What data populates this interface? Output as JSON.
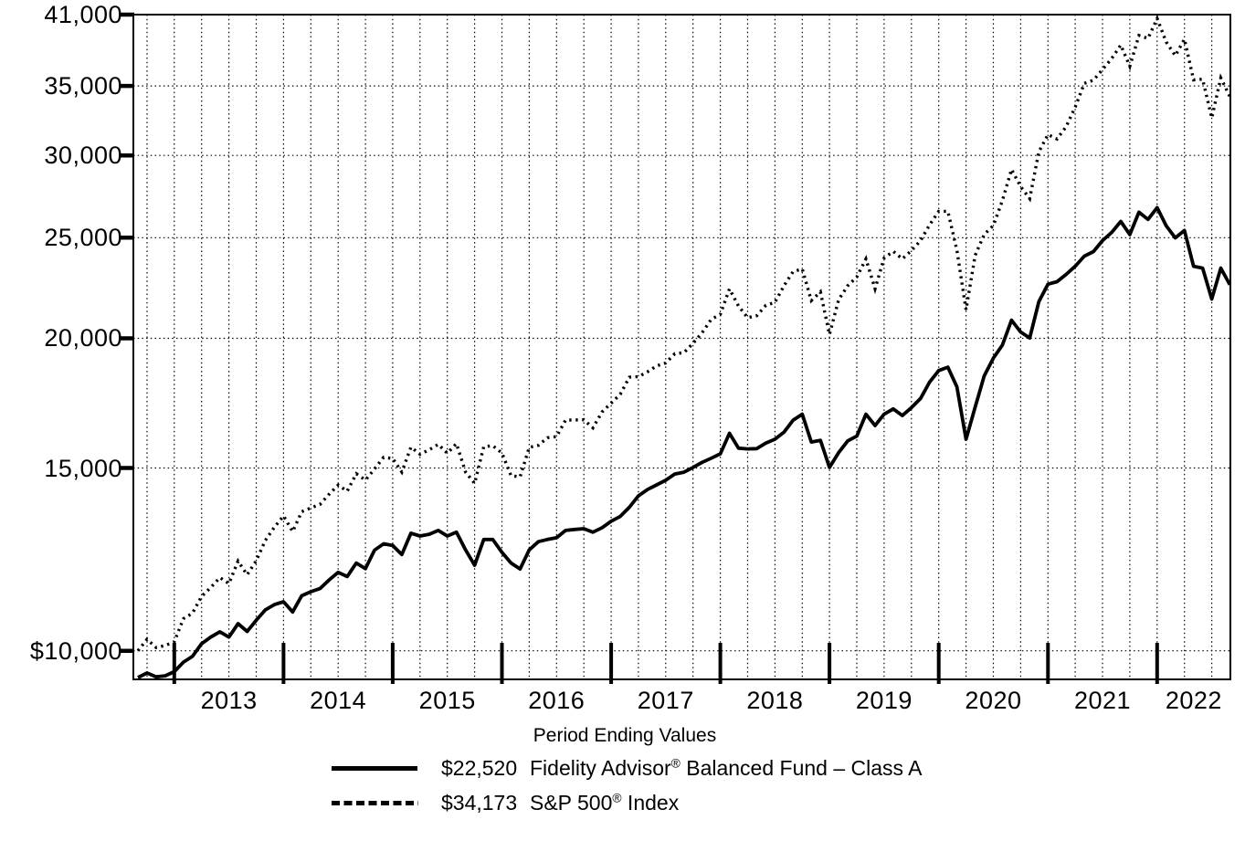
{
  "colors": {
    "line": "#000000",
    "background": "#ffffff"
  },
  "chart_data": {
    "type": "line",
    "title": "Period Ending Values",
    "x_start": "Aug 2012",
    "x_end": "Aug 2022",
    "interval": "monthly",
    "log_scale": true,
    "grid": "vertical dotted lines at calendar quarters, horizontal dotted lines at y ticks",
    "legend_position": "bottom",
    "ylim": [
      9387,
      41000
    ],
    "y_ticks": [
      41000,
      35000,
      30000,
      25000,
      20000,
      15000,
      10000
    ],
    "y_tick_labels": [
      "41,000",
      "35,000",
      "30,000",
      "25,000",
      "20,000",
      "15,000",
      "$10,000"
    ],
    "x_tick_years": [
      "2013",
      "2014",
      "2015",
      "2016",
      "2017",
      "2018",
      "2019",
      "2020",
      "2021",
      "2022"
    ],
    "series": [
      {
        "name": "Fidelity Advisor® Balanced Fund – Class A",
        "name_pre": "Fidelity Advisor",
        "reg": "®",
        "name_post": " Balanced Fund – Class A",
        "style": "solid",
        "final_value_label": "$22,520",
        "final_value": 22520,
        "values": [
          9425,
          9520,
          9440,
          9460,
          9550,
          9750,
          9880,
          10160,
          10310,
          10430,
          10310,
          10620,
          10440,
          10700,
          10950,
          11080,
          11150,
          10900,
          11300,
          11400,
          11480,
          11700,
          11900,
          11790,
          12150,
          12000,
          12500,
          12680,
          12630,
          12380,
          12980,
          12900,
          12950,
          13060,
          12900,
          13010,
          12510,
          12090,
          12800,
          12800,
          12440,
          12150,
          11990,
          12510,
          12740,
          12800,
          12850,
          13060,
          13090,
          13110,
          13010,
          13140,
          13330,
          13470,
          13750,
          14100,
          14300,
          14450,
          14600,
          14800,
          14860,
          15020,
          15190,
          15330,
          15480,
          16200,
          15674,
          15650,
          15660,
          15850,
          15990,
          16240,
          16680,
          16900,
          15890,
          15950,
          15020,
          15520,
          15930,
          16100,
          16900,
          16480,
          16900,
          17100,
          16850,
          17150,
          17500,
          18150,
          18620,
          18760,
          17955,
          15990,
          17170,
          18400,
          19140,
          19700,
          20820,
          20280,
          20010,
          21690,
          22550,
          22673,
          23044,
          23465,
          23995,
          24240,
          24838,
          25290,
          25917,
          25170,
          26453,
          26030,
          26720,
          25660,
          24990,
          25400,
          23465,
          23370,
          21820,
          23370,
          22520
        ]
      },
      {
        "name": "S&P 500® Index",
        "name_pre": "S&P 500",
        "reg": "®",
        "name_post": " Index",
        "style": "dotted",
        "final_value_label": "$34,173",
        "final_value": 34173,
        "values": [
          10000,
          10259,
          10073,
          10118,
          10206,
          10738,
          10874,
          11284,
          11507,
          11765,
          11607,
          12201,
          11838,
          12210,
          12776,
          13155,
          13487,
          13028,
          13613,
          13729,
          13836,
          14151,
          14444,
          14249,
          14810,
          14604,
          14967,
          15359,
          15320,
          14868,
          15710,
          15462,
          15619,
          15808,
          15501,
          15833,
          14866,
          14497,
          15725,
          15759,
          15508,
          14745,
          14708,
          15704,
          15772,
          16040,
          16081,
          16680,
          16687,
          16694,
          16396,
          16984,
          17321,
          17660,
          18346,
          18369,
          18566,
          18812,
          18933,
          19331,
          19373,
          19778,
          20250,
          20853,
          21092,
          22314,
          21479,
          20936,
          21027,
          21516,
          21656,
          22472,
          23190,
          23327,
          21744,
          22168,
          20166,
          21789,
          22473,
          22913,
          23852,
          22320,
          23897,
          24250,
          23850,
          24300,
          24836,
          25723,
          26502,
          26503,
          24313,
          21303,
          24046,
          25176,
          25681,
          27140,
          29089,
          27993,
          27263,
          30244,
          31418,
          31119,
          31982,
          33394,
          35202,
          35452,
          36299,
          37185,
          38326,
          36562,
          39153,
          38890,
          40652,
          38577,
          37429,
          38830,
          35473,
          35533,
          32603,
          35632,
          34173
        ]
      }
    ]
  }
}
